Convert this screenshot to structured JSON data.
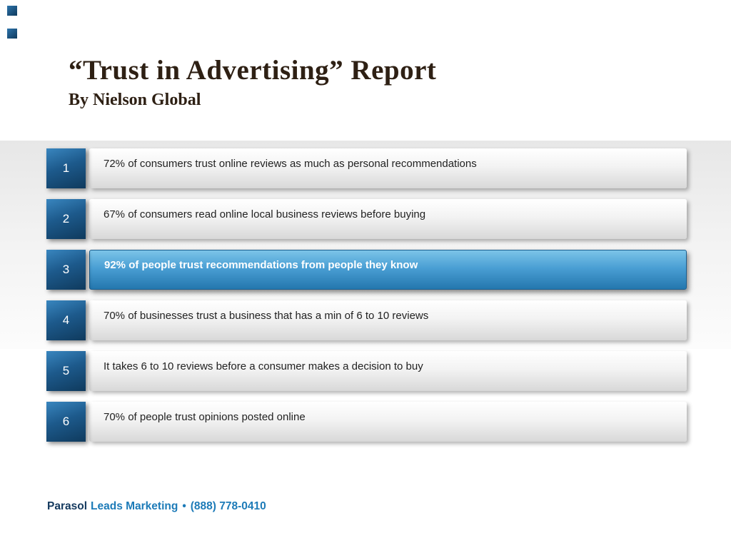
{
  "header": {
    "title": "“Trust in Advertising” Report",
    "subtitle": "By Nielson Global"
  },
  "rows": [
    {
      "number": "1",
      "text": "72% of consumers trust online reviews as much as personal recommendations",
      "highlighted": false
    },
    {
      "number": "2",
      "text": "67% of consumers read online local business reviews before buying",
      "highlighted": false
    },
    {
      "number": "3",
      "text": "92% of people trust recommendations from people they know",
      "highlighted": true
    },
    {
      "number": "4",
      "text": "70% of businesses trust a business that has a min of 6 to 10 reviews",
      "highlighted": false
    },
    {
      "number": "5",
      "text": "It takes 6 to 10 reviews before a consumer makes a decision to buy",
      "highlighted": false
    },
    {
      "number": "6",
      "text": "70% of people trust opinions posted online",
      "highlighted": false
    }
  ],
  "footer": {
    "brand_bold": "Parasol",
    "brand_accent": "Leads Marketing",
    "separator": "•",
    "phone": "(888) 778-0410"
  },
  "colors": {
    "highlight_top": "#7cc4e8",
    "highlight_bottom": "#2477ae",
    "number_square_top": "#3986bf",
    "number_square_bottom": "#0f3a5d",
    "accent_blue": "#1d7bb8",
    "title_text": "#2e2014"
  }
}
